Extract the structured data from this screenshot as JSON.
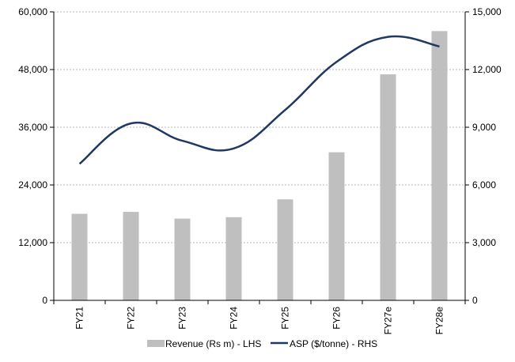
{
  "chart_data": {
    "type": "bar",
    "title": "",
    "categories": [
      "FY21",
      "FY22",
      "FY23",
      "FY24",
      "FY25",
      "FY26",
      "FY27e",
      "FY28e"
    ],
    "series": [
      {
        "name": "Revenue (Rs m) - LHS",
        "type": "bar",
        "axis": "left",
        "color": "#bfbfbf",
        "values": [
          18000,
          18400,
          17000,
          17300,
          21000,
          30800,
          47000,
          56000
        ]
      },
      {
        "name": "ASP ($/tonne) - RHS",
        "type": "line",
        "axis": "right",
        "color": "#1f3864",
        "smooth": true,
        "values": [
          7100,
          9200,
          8300,
          7900,
          9900,
          12400,
          13700,
          13200
        ]
      }
    ],
    "y_left": {
      "min": 0,
      "max": 60000,
      "ticks": [
        "0",
        "12,000",
        "24,000",
        "36,000",
        "48,000",
        "60,000"
      ]
    },
    "y_right": {
      "min": 0,
      "max": 15000,
      "ticks": [
        "0",
        "3,000",
        "6,000",
        "9,000",
        "12,000",
        "15,000"
      ]
    },
    "grid": true,
    "legend_position": "bottom"
  }
}
